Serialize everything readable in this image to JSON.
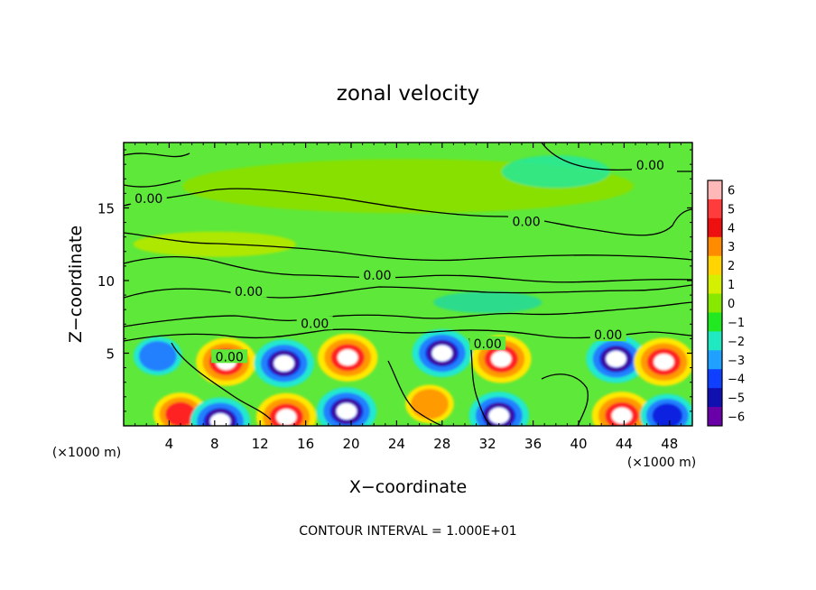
{
  "chart_data": {
    "type": "heatmap",
    "title": "zonal velocity",
    "xlabel": "X−coordinate",
    "ylabel": "Z−coordinate",
    "x_units_label_left": "(×1000 m)",
    "x_units_label_right": "(×1000 m)",
    "footer": "CONTOUR INTERVAL = 1.000E+01",
    "xlim": [
      0,
      50
    ],
    "ylim": [
      0,
      19.5
    ],
    "x_ticks": [
      "4",
      "8",
      "12",
      "16",
      "20",
      "24",
      "28",
      "32",
      "36",
      "40",
      "44",
      "48"
    ],
    "x_tick_values": [
      4,
      8,
      12,
      16,
      20,
      24,
      28,
      32,
      36,
      40,
      44,
      48
    ],
    "y_ticks": [
      "5",
      "10",
      "15"
    ],
    "y_tick_values": [
      5,
      10,
      15
    ],
    "colorbar": {
      "labels": [
        "6",
        "5",
        "4",
        "3",
        "2",
        "1",
        "0",
        "−1",
        "−2",
        "−3",
        "−4",
        "−5",
        "−6"
      ],
      "values": [
        6,
        5,
        4,
        3,
        2,
        1,
        0,
        -1,
        -2,
        -3,
        -4,
        -5,
        -6
      ],
      "colors": [
        "#ffb8b8",
        "#ff3c3c",
        "#ee1010",
        "#ff8c00",
        "#ffd400",
        "#d4f000",
        "#88e800",
        "#22e822",
        "#20e8c0",
        "#20a0ff",
        "#1040ff",
        "#1010b0",
        "#6a00a8"
      ]
    },
    "contour_labels": [
      {
        "text": "0.00",
        "x": 46.3,
        "z": 17.9
      },
      {
        "text": "0.00",
        "x": 2.2,
        "z": 15.6
      },
      {
        "text": "0.00",
        "x": 35.4,
        "z": 14.0
      },
      {
        "text": "0.00",
        "x": 22.3,
        "z": 10.3
      },
      {
        "text": "0.00",
        "x": 11.0,
        "z": 9.2
      },
      {
        "text": "0.00",
        "x": 16.8,
        "z": 7.0
      },
      {
        "text": "0.00",
        "x": 32.0,
        "z": 5.6
      },
      {
        "text": "0.00",
        "x": 42.6,
        "z": 6.2
      },
      {
        "text": "0.00",
        "x": 9.3,
        "z": 4.7
      }
    ],
    "features": [
      {
        "sign": "positive",
        "x": 9.0,
        "z": 4.4,
        "peak": 6
      },
      {
        "sign": "negative",
        "x": 14.1,
        "z": 4.3,
        "peak": -6
      },
      {
        "sign": "positive",
        "x": 19.7,
        "z": 4.7,
        "peak": 6
      },
      {
        "sign": "negative",
        "x": 28.0,
        "z": 5.0,
        "peak": -6
      },
      {
        "sign": "positive",
        "x": 33.2,
        "z": 4.6,
        "peak": 6
      },
      {
        "sign": "negative",
        "x": 43.3,
        "z": 4.6,
        "peak": -6
      },
      {
        "sign": "positive",
        "x": 47.5,
        "z": 4.4,
        "peak": 6
      },
      {
        "sign": "negative",
        "x": 3.0,
        "z": 4.8,
        "peak": -4
      },
      {
        "sign": "positive",
        "x": 5.0,
        "z": 0.8,
        "peak": 5
      },
      {
        "sign": "negative",
        "x": 8.5,
        "z": 0.3,
        "peak": -6
      },
      {
        "sign": "positive",
        "x": 14.3,
        "z": 0.6,
        "peak": 6
      },
      {
        "sign": "negative",
        "x": 19.6,
        "z": 1.0,
        "peak": -6
      },
      {
        "sign": "positive",
        "x": 26.9,
        "z": 1.5,
        "peak": 4
      },
      {
        "sign": "negative",
        "x": 33.0,
        "z": 0.7,
        "peak": -6
      },
      {
        "sign": "positive",
        "x": 43.8,
        "z": 0.7,
        "peak": 6
      },
      {
        "sign": "negative",
        "x": 47.8,
        "z": 0.7,
        "peak": -5
      }
    ]
  }
}
